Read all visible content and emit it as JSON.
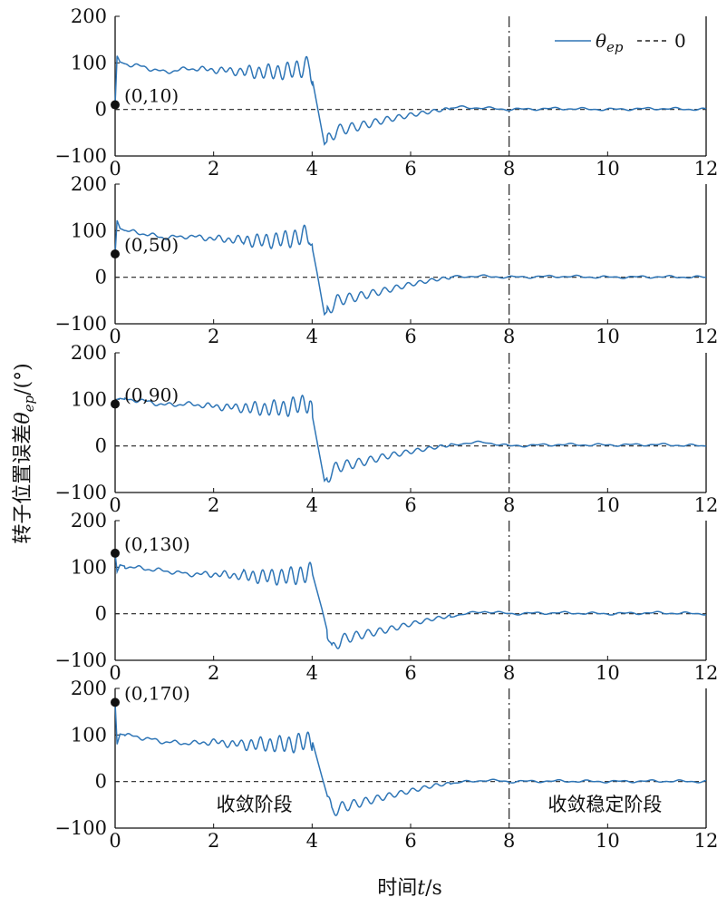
{
  "chart_data": [
    {
      "type": "line",
      "panel": 1,
      "start_point": {
        "x": 0,
        "y": 10,
        "label": "(0,10)"
      },
      "xlim": [
        0,
        12
      ],
      "ylim": [
        -100,
        200
      ],
      "xticks": [
        "0",
        "2",
        "4",
        "6",
        "8",
        "10",
        "12"
      ],
      "yticks": [
        "200",
        "100",
        "0",
        "−100"
      ],
      "vline_x": 8,
      "series": [
        {
          "name": "θep",
          "style": "solid",
          "color": "#2e75b6",
          "x": [
            0,
            0.04,
            0.1,
            0.2,
            0.5,
            1.0,
            1.5,
            2.0,
            2.5,
            3.0,
            3.5,
            3.95,
            4.1,
            4.25,
            4.5,
            5.0,
            5.5,
            6.0,
            6.5,
            7.0,
            7.5,
            8.0,
            9.0,
            10.0,
            11.0,
            12.0
          ],
          "y": [
            10,
            115,
            102,
            98,
            93,
            80,
            88,
            85,
            82,
            80,
            82,
            95,
            10,
            -75,
            -45,
            -35,
            -22,
            -12,
            -3,
            5,
            3,
            0,
            2,
            0,
            2,
            0
          ]
        },
        {
          "name": "0",
          "style": "dashed",
          "color": "#222222",
          "x": [
            0,
            12
          ],
          "y": [
            0,
            0
          ]
        }
      ]
    },
    {
      "type": "line",
      "panel": 2,
      "start_point": {
        "x": 0,
        "y": 50,
        "label": "(0,50)"
      },
      "xlim": [
        0,
        12
      ],
      "ylim": [
        -100,
        200
      ],
      "xticks": [
        "0",
        "2",
        "4",
        "6",
        "8",
        "10",
        "12"
      ],
      "yticks": [
        "200",
        "100",
        "0",
        "−100"
      ],
      "vline_x": 8,
      "series": [
        {
          "name": "θep",
          "style": "solid",
          "color": "#2e75b6",
          "x": [
            0,
            0.04,
            0.1,
            0.2,
            0.5,
            1.0,
            1.5,
            2.0,
            2.5,
            3.0,
            3.5,
            3.95,
            4.1,
            4.25,
            4.5,
            5.0,
            5.5,
            6.0,
            6.5,
            7.0,
            7.5,
            8.0,
            9.0,
            10.0,
            11.0,
            12.0
          ],
          "y": [
            50,
            122,
            105,
            100,
            95,
            85,
            88,
            83,
            80,
            78,
            82,
            92,
            10,
            -80,
            -50,
            -40,
            -28,
            -15,
            -5,
            2,
            2,
            0,
            2,
            0,
            1,
            0
          ]
        },
        {
          "name": "0",
          "style": "dashed",
          "color": "#222222",
          "x": [
            0,
            12
          ],
          "y": [
            0,
            0
          ]
        }
      ]
    },
    {
      "type": "line",
      "panel": 3,
      "start_point": {
        "x": 0,
        "y": 90,
        "label": "(0,90)"
      },
      "xlim": [
        0,
        12
      ],
      "ylim": [
        -100,
        200
      ],
      "xticks": [
        "0",
        "2",
        "4",
        "6",
        "8",
        "10",
        "12"
      ],
      "yticks": [
        "200",
        "100",
        "0",
        "−100"
      ],
      "vline_x": 8,
      "series": [
        {
          "name": "θep",
          "style": "solid",
          "color": "#2e75b6",
          "x": [
            0,
            0.04,
            0.1,
            0.2,
            0.5,
            1.0,
            1.5,
            2.0,
            2.5,
            3.0,
            3.5,
            3.95,
            4.1,
            4.25,
            4.5,
            5.0,
            5.5,
            6.0,
            6.5,
            7.0,
            7.5,
            8.0,
            9.0,
            10.0,
            11.0,
            12.0
          ],
          "y": [
            90,
            100,
            102,
            100,
            98,
            88,
            90,
            85,
            82,
            80,
            82,
            95,
            10,
            -75,
            -45,
            -35,
            -22,
            -12,
            -3,
            5,
            8,
            0,
            3,
            2,
            3,
            0
          ]
        },
        {
          "name": "0",
          "style": "dashed",
          "color": "#222222",
          "x": [
            0,
            12
          ],
          "y": [
            0,
            0
          ]
        }
      ]
    },
    {
      "type": "line",
      "panel": 4,
      "start_point": {
        "x": 0,
        "y": 130,
        "label": "(0,130)"
      },
      "xlim": [
        0,
        12
      ],
      "ylim": [
        -100,
        200
      ],
      "xticks": [
        "0",
        "2",
        "4",
        "6",
        "8",
        "10",
        "12"
      ],
      "yticks": [
        "200",
        "100",
        "0",
        "−100"
      ],
      "vline_x": 8,
      "series": [
        {
          "name": "θep",
          "style": "solid",
          "color": "#2e75b6",
          "x": [
            0,
            0.04,
            0.1,
            0.2,
            0.5,
            1.0,
            1.5,
            2.0,
            2.5,
            3.0,
            3.5,
            4.0,
            4.2,
            4.4,
            4.6,
            5.0,
            5.5,
            6.0,
            6.5,
            7.0,
            7.5,
            8.0,
            9.0,
            10.0,
            11.0,
            12.0
          ],
          "y": [
            130,
            90,
            105,
            102,
            98,
            92,
            85,
            85,
            82,
            80,
            80,
            88,
            10,
            -78,
            -55,
            -45,
            -35,
            -22,
            -10,
            -2,
            5,
            0,
            2,
            0,
            2,
            0
          ]
        },
        {
          "name": "0",
          "style": "dashed",
          "color": "#222222",
          "x": [
            0,
            12
          ],
          "y": [
            0,
            0
          ]
        }
      ]
    },
    {
      "type": "line",
      "panel": 5,
      "start_point": {
        "x": 0,
        "y": 170,
        "label": "(0,170)"
      },
      "xlim": [
        0,
        12
      ],
      "ylim": [
        -100,
        200
      ],
      "xticks": [
        "0",
        "2",
        "4",
        "6",
        "8",
        "10",
        "12"
      ],
      "yticks": [
        "200",
        "100",
        "0",
        "−100"
      ],
      "vline_x": 8,
      "series": [
        {
          "name": "θep",
          "style": "solid",
          "color": "#2e75b6",
          "x": [
            0,
            0.04,
            0.1,
            0.2,
            0.5,
            1.0,
            1.5,
            2.0,
            2.5,
            3.0,
            3.5,
            4.0,
            4.2,
            4.4,
            4.6,
            5.0,
            5.5,
            6.0,
            6.5,
            7.0,
            7.5,
            8.0,
            9.0,
            10.0,
            11.0,
            12.0
          ],
          "y": [
            170,
            80,
            102,
            100,
            95,
            85,
            82,
            85,
            80,
            80,
            80,
            88,
            10,
            -65,
            -55,
            -45,
            -32,
            -20,
            -8,
            -2,
            3,
            0,
            1,
            0,
            1,
            0
          ]
        },
        {
          "name": "0",
          "style": "dashed",
          "color": "#222222",
          "x": [
            0,
            12
          ],
          "y": [
            0,
            0
          ]
        }
      ]
    }
  ],
  "legend": {
    "series_label": "θep",
    "dash_label": "0",
    "placement": "top-right"
  },
  "ylabel": "转子位置误差θep/(°)",
  "xlabel": "时间t/s",
  "stage_labels": [
    "收敛阶段",
    "收敛稳定阶段"
  ],
  "colors": {
    "line": "#2e75b6",
    "axis": "#111111",
    "marker": "#111111"
  }
}
